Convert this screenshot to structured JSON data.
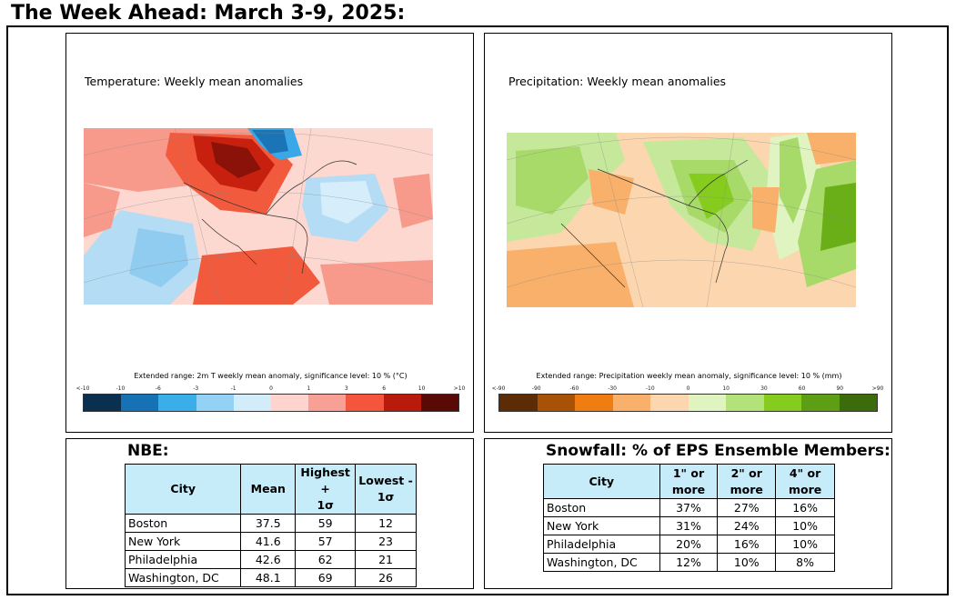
{
  "header": {
    "title": "The Week Ahead: March 3-9, 2025:"
  },
  "temperature_map": {
    "label": "Temperature: Weekly mean anomalies",
    "colorbar_title": "Extended range: 2m T weekly mean anomaly, significance level: 10 % (°C)",
    "ticks": [
      "<-10",
      "-10",
      "-6",
      "-3",
      "-1",
      "0",
      "1",
      "3",
      "6",
      "10",
      ">10"
    ],
    "colors": [
      "#0b2f4f",
      "#1672b4",
      "#39aee8",
      "#94d2f5",
      "#d2ecfa",
      "#ffd4cf",
      "#f8a096",
      "#f4553c",
      "#b81a0c",
      "#5a0a04"
    ]
  },
  "precipitation_map": {
    "label": "Precipitation: Weekly mean anomalies",
    "colorbar_title": "Extended range: Precipitation weekly mean anomaly, significance level: 10 % (mm)",
    "ticks": [
      "<-90",
      "-90",
      "-60",
      "-30",
      "-10",
      "0",
      "10",
      "30",
      "60",
      "90",
      ">90"
    ],
    "colors": [
      "#5b2c06",
      "#a85208",
      "#f07d12",
      "#f8b06a",
      "#fcd6ae",
      "#e0f4c2",
      "#b4e27a",
      "#86cc1e",
      "#5e9e14",
      "#3c6b0c"
    ]
  },
  "nbe": {
    "title": "NBE:",
    "headers": {
      "city": "City",
      "mean": "Mean",
      "high_1": "Highest +",
      "high_2": "1σ",
      "low_1": "Lowest -",
      "low_2": "1σ"
    },
    "rows": [
      {
        "city": "Boston",
        "mean": "37.5",
        "high": "59",
        "low": "12"
      },
      {
        "city": "New York",
        "mean": "41.6",
        "high": "57",
        "low": "23"
      },
      {
        "city": "Philadelphia",
        "mean": "42.6",
        "high": "62",
        "low": "21"
      },
      {
        "city": "Washington, DC",
        "mean": "48.1",
        "high": "69",
        "low": "26"
      }
    ]
  },
  "snowfall": {
    "title": "Snowfall: % of EPS Ensemble Members:",
    "headers": {
      "city": "City",
      "c1_1": "1\" or",
      "c1_2": "more",
      "c2_1": "2\" or",
      "c2_2": "more",
      "c4_1": "4\" or",
      "c4_2": "more"
    },
    "rows": [
      {
        "city": "Boston",
        "one": "37%",
        "two": "27%",
        "four": "16%"
      },
      {
        "city": "New York",
        "one": "31%",
        "two": "24%",
        "four": "10%"
      },
      {
        "city": "Philadelphia",
        "one": "20%",
        "two": "16%",
        "four": "10%"
      },
      {
        "city": "Washington, DC",
        "one": "12%",
        "two": "10%",
        "four": "8%"
      }
    ]
  }
}
